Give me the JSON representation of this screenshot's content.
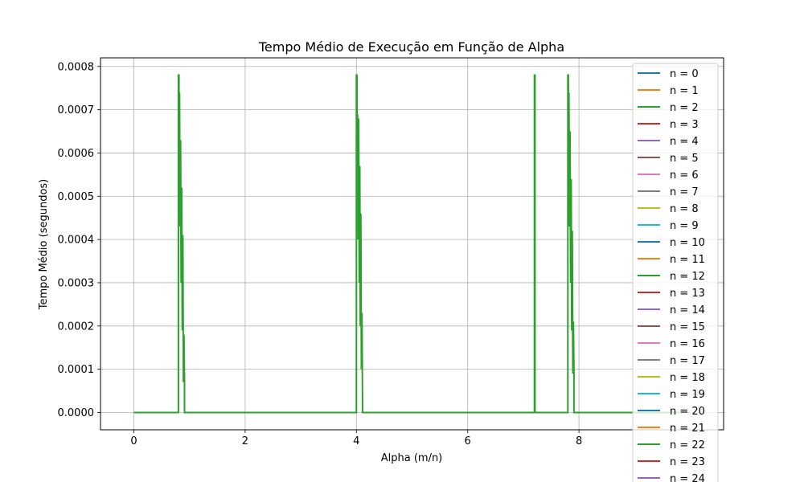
{
  "chart_data": {
    "type": "line",
    "title": "Tempo Médio de Execução em Função de Alpha",
    "xlabel": "Alpha (m/n)",
    "ylabel": "Tempo Médio (segundos)",
    "xlim": [
      -0.6,
      10.6
    ],
    "ylim": [
      -4e-05,
      0.00082
    ],
    "xticks": [
      0,
      2,
      4,
      6,
      8
    ],
    "xtick_labels": [
      "0",
      "2",
      "4",
      "6",
      "8"
    ],
    "yticks": [
      0,
      0.0001,
      0.0002,
      0.0003,
      0.0004,
      0.0005,
      0.0006,
      0.0007,
      0.0008
    ],
    "ytick_labels": [
      "0.0000",
      "0.0001",
      "0.0002",
      "0.0003",
      "0.0004",
      "0.0005",
      "0.0006",
      "0.0007",
      "0.0008"
    ],
    "grid": true,
    "legend_position": "upper-right",
    "legend": [
      {
        "label": "n = 0",
        "color": "#1f77b4"
      },
      {
        "label": "n = 1",
        "color": "#ff7f0e"
      },
      {
        "label": "n = 2",
        "color": "#2ca02c"
      },
      {
        "label": "n = 3",
        "color": "#d62728"
      },
      {
        "label": "n = 4",
        "color": "#9467bd"
      },
      {
        "label": "n = 5",
        "color": "#8c564b"
      },
      {
        "label": "n = 6",
        "color": "#e377c2"
      },
      {
        "label": "n = 7",
        "color": "#7f7f7f"
      },
      {
        "label": "n = 8",
        "color": "#bcbd22"
      },
      {
        "label": "n = 9",
        "color": "#17becf"
      },
      {
        "label": "n = 10",
        "color": "#1f77b4"
      },
      {
        "label": "n = 11",
        "color": "#ff7f0e"
      },
      {
        "label": "n = 12",
        "color": "#2ca02c"
      },
      {
        "label": "n = 13",
        "color": "#d62728"
      },
      {
        "label": "n = 14",
        "color": "#9467bd"
      },
      {
        "label": "n = 15",
        "color": "#8c564b"
      },
      {
        "label": "n = 16",
        "color": "#e377c2"
      },
      {
        "label": "n = 17",
        "color": "#7f7f7f"
      },
      {
        "label": "n = 18",
        "color": "#bcbd22"
      },
      {
        "label": "n = 19",
        "color": "#17becf"
      },
      {
        "label": "n = 20",
        "color": "#1f77b4"
      },
      {
        "label": "n = 21",
        "color": "#ff7f0e"
      },
      {
        "label": "n = 22",
        "color": "#2ca02c"
      },
      {
        "label": "n = 23",
        "color": "#d62728"
      },
      {
        "label": "n = 24",
        "color": "#9467bd"
      }
    ],
    "series": [
      {
        "color": "#2ca02c",
        "points": [
          [
            0,
            0
          ],
          [
            0.8,
            0
          ],
          [
            0.8,
            0.00078
          ],
          [
            0.81,
            0.00078
          ],
          [
            0.81,
            0.0005
          ],
          [
            0.82,
            0.00074
          ],
          [
            0.83,
            0.00043
          ],
          [
            0.84,
            0.00063
          ],
          [
            0.85,
            0.0003
          ],
          [
            0.86,
            0.00052
          ],
          [
            0.87,
            0.00019
          ],
          [
            0.88,
            0.00041
          ],
          [
            0.89,
            7e-05
          ],
          [
            0.9,
            0.00018
          ],
          [
            0.91,
            7e-05
          ],
          [
            0.91,
            0
          ],
          [
            4.0,
            0
          ],
          [
            4.0,
            0.00078
          ],
          [
            4.01,
            0.00078
          ],
          [
            4.01,
            0.0005
          ],
          [
            4.02,
            0.00069
          ],
          [
            4.03,
            0.0004
          ],
          [
            4.04,
            0.00068
          ],
          [
            4.05,
            0.0003
          ],
          [
            4.06,
            0.00057
          ],
          [
            4.07,
            0.0002
          ],
          [
            4.08,
            0.00046
          ],
          [
            4.09,
            0.0001
          ],
          [
            4.1,
            0.00023
          ],
          [
            4.11,
            2e-05
          ],
          [
            4.11,
            0
          ],
          [
            7.2,
            0
          ],
          [
            7.2,
            0.00078
          ],
          [
            7.21,
            0.00078
          ],
          [
            7.21,
            0
          ],
          [
            7.8,
            0
          ],
          [
            7.8,
            0.00078
          ],
          [
            7.81,
            0.00078
          ],
          [
            7.81,
            0.0005
          ],
          [
            7.82,
            0.00074
          ],
          [
            7.83,
            0.00043
          ],
          [
            7.84,
            0.00065
          ],
          [
            7.85,
            0.0003
          ],
          [
            7.86,
            0.00054
          ],
          [
            7.87,
            0.00019
          ],
          [
            7.88,
            0.00042
          ],
          [
            7.89,
            9e-05
          ],
          [
            7.9,
            0.00021
          ],
          [
            7.91,
            9e-05
          ],
          [
            7.91,
            0
          ],
          [
            10,
            0
          ]
        ]
      }
    ]
  }
}
